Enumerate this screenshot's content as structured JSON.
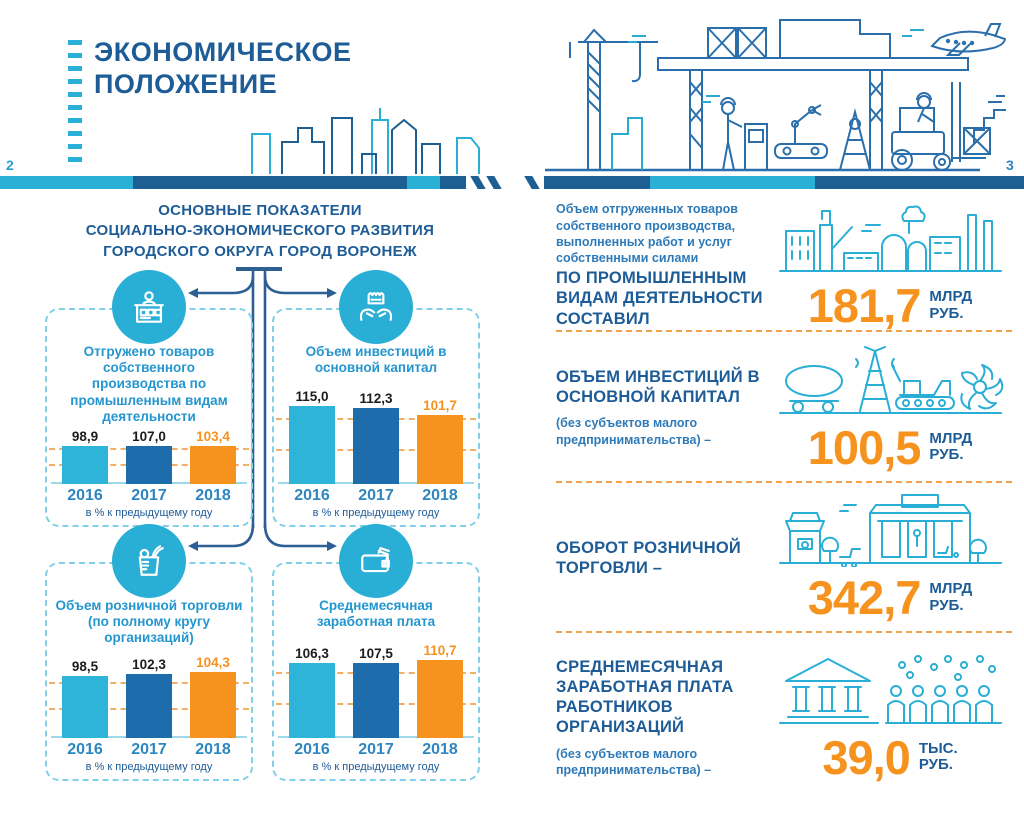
{
  "colors": {
    "navy": "#1d5c96",
    "medium_blue": "#2e7ab8",
    "chart_title_blue": "#2496cf",
    "cyan": "#29aed6",
    "bar_2016": "#2fb4d9",
    "bar_2017": "#1d6cab",
    "bar_2018": "#f6921e",
    "orange": "#f6921e",
    "year_blue": "#2e86c1"
  },
  "masthead": {
    "title_line1": "ЭКОНОМИЧЕСКОЕ",
    "title_line2": "ПОЛОЖЕНИЕ",
    "page_left": "2",
    "page_right": "3"
  },
  "left_panel": {
    "heading_line1": "ОСНОВНЫЕ ПОКАЗАТЕЛИ",
    "heading_line2": "СОЦИАЛЬНО-ЭКОНОМИЧЕСКОГО РАЗВИТИЯ",
    "heading_line3": "ГОРОДСКОГО ОКРУГА ГОРОД ВОРОНЕЖ"
  },
  "chart_data": [
    {
      "type": "bar",
      "icon": "production-counter-icon",
      "title": "Отгружено товаров собственного производства по промышленным видам деятельности",
      "categories": [
        "2016",
        "2017",
        "2018"
      ],
      "values": [
        98.9,
        107.0,
        103.4
      ],
      "labels": [
        "98,9",
        "107,0",
        "103,4"
      ],
      "label_colors": [
        "#1c1c1c",
        "#1c1c1c",
        "#f6921e"
      ],
      "bar_colors": [
        "#2fb4d9",
        "#1d6cab",
        "#f6921e"
      ],
      "note": "в % к предыдущему году"
    },
    {
      "type": "bar",
      "icon": "hands-factory-icon",
      "title": "Объем инвестиций в основной капитал",
      "categories": [
        "2016",
        "2017",
        "2018"
      ],
      "values": [
        115.0,
        112.3,
        101.7
      ],
      "labels": [
        "115,0",
        "112,3",
        "101,7"
      ],
      "label_colors": [
        "#1c1c1c",
        "#1c1c1c",
        "#f6921e"
      ],
      "bar_colors": [
        "#2fb4d9",
        "#1d6cab",
        "#f6921e"
      ],
      "note": "в % к предыдущему году"
    },
    {
      "type": "bar",
      "icon": "grocery-bag-icon",
      "title": "Объем розничной торговли (по полному кругу организаций)",
      "categories": [
        "2016",
        "2017",
        "2018"
      ],
      "values": [
        98.5,
        102.3,
        104.3
      ],
      "labels": [
        "98,5",
        "102,3",
        "104,3"
      ],
      "label_colors": [
        "#1c1c1c",
        "#1c1c1c",
        "#f6921e"
      ],
      "bar_colors": [
        "#2fb4d9",
        "#1d6cab",
        "#f6921e"
      ],
      "note": "в % к предыдущему году"
    },
    {
      "type": "bar",
      "icon": "wallet-icon",
      "title": "Среднемесячная заработная плата",
      "categories": [
        "2016",
        "2017",
        "2018"
      ],
      "values": [
        106.3,
        107.5,
        110.7
      ],
      "labels": [
        "106,3",
        "107,5",
        "110,7"
      ],
      "label_colors": [
        "#1c1c1c",
        "#1c1c1c",
        "#f6921e"
      ],
      "bar_colors": [
        "#2fb4d9",
        "#1d6cab",
        "#f6921e"
      ],
      "note": "в % к предыдущему году"
    }
  ],
  "right_panel": {
    "rows": [
      {
        "icon": "factory-skyline-icon",
        "lead": "Объем отгруженных товаров собственного производства, выполненных работ и услуг собственными силами",
        "emphasis": "ПО ПРОМЫШЛЕННЫМ ВИДАМ ДЕЯТЕЛЬНОСТИ СОСТАВИЛ",
        "sub": "",
        "value": "181,7",
        "unit1": "МЛРД",
        "unit2": "РУБ."
      },
      {
        "icon": "industry-machinery-icon",
        "lead": "",
        "emphasis": "ОБЪЕМ ИНВЕСТИЦИЙ В ОСНОВНОЙ КАПИТАЛ",
        "sub": "(без субъектов малого предпринимательства) –",
        "value": "100,5",
        "unit1": "МЛРД",
        "unit2": "РУБ."
      },
      {
        "icon": "retail-store-icon",
        "lead": "",
        "emphasis": "ОБОРОТ РОЗНИЧНОЙ ТОРГОВЛИ –",
        "sub": "",
        "value": "342,7",
        "unit1": "МЛРД",
        "unit2": "РУБ."
      },
      {
        "icon": "bank-people-icon",
        "lead": "",
        "emphasis": "СРЕДНЕМЕСЯЧНАЯ ЗАРАБОТНАЯ ПЛАТА РАБОТНИКОВ ОРГАНИЗАЦИЙ",
        "sub": "(без субъектов малого предпринимательства) –",
        "value": "39,0",
        "unit1": "ТЫС.",
        "unit2": "РУБ."
      }
    ]
  }
}
